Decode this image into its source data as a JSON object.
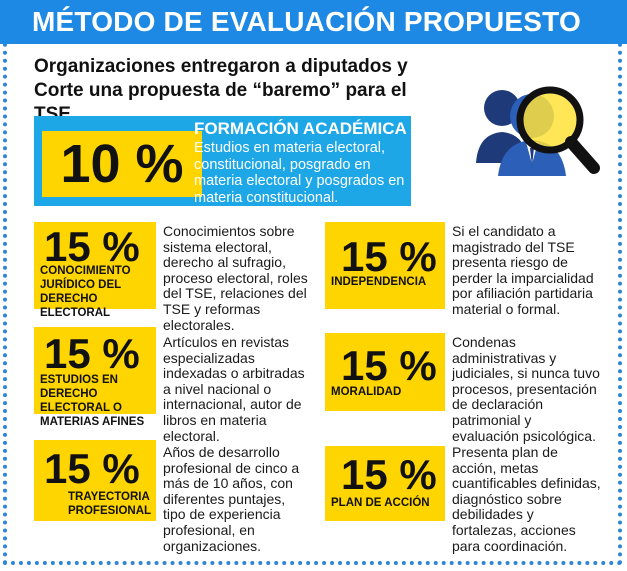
{
  "header": {
    "title": "MÉTODO DE EVALUACIÓN PROPUESTO"
  },
  "intro": "Organizaciones entregaron a diputados y Corte una propuesta de “baremo” para el TSE.",
  "top": {
    "pct": "10 %",
    "title": "FORMACIÓN ACADÉMICA",
    "desc": "Estudios en materia electoral, constitucional, posgrado en materia electoral y posgrados en materia constitucional."
  },
  "left": [
    {
      "pct": "15 %",
      "label": "CONOCIMIENTO JURÍDICO DEL DERECHO ELECTORAL",
      "desc": "Conocimientos sobre sistema electoral, derecho al sufragio, proceso electoral, roles del TSE, relaciones del TSE y reformas electorales."
    },
    {
      "pct": "15 %",
      "label": "ESTUDIOS EN DERECHO ELECTORAL O MATERIAS AFINES",
      "desc": "Artículos en revistas especializadas indexadas o arbitradas a nivel nacional o internacional, autor de libros en materia electoral."
    },
    {
      "pct": "15 %",
      "label": "TRAYECTORIA PROFESIONAL",
      "desc": "Años de desarrollo profesional de cinco a más de 10 años, con diferentes puntajes, tipo de experiencia profesional, en organizaciones."
    }
  ],
  "right": [
    {
      "pct": "15 %",
      "label": "INDEPENDENCIA",
      "desc": "Si el candidato a magistrado del TSE presenta riesgo de perder la imparcialidad por afiliación partidaria material o formal."
    },
    {
      "pct": "15 %",
      "label": "MORALIDAD",
      "desc": "Condenas administrativas y judiciales, si nunca tuvo procesos, presentación de declaración patrimonial y evaluación psicológica."
    },
    {
      "pct": "15 %",
      "label": "PLAN DE ACCIÓN",
      "desc": "Presenta plan de acción, metas cuantificables definidas, diagnóstico sobre debilidades y fortalezas, acciones para coordinación."
    }
  ],
  "colors": {
    "banner": "#1e88e5",
    "top_box": "#1ea7e6",
    "yellow": "#ffd500"
  },
  "icons": {
    "main": "people-magnifier-icon"
  }
}
